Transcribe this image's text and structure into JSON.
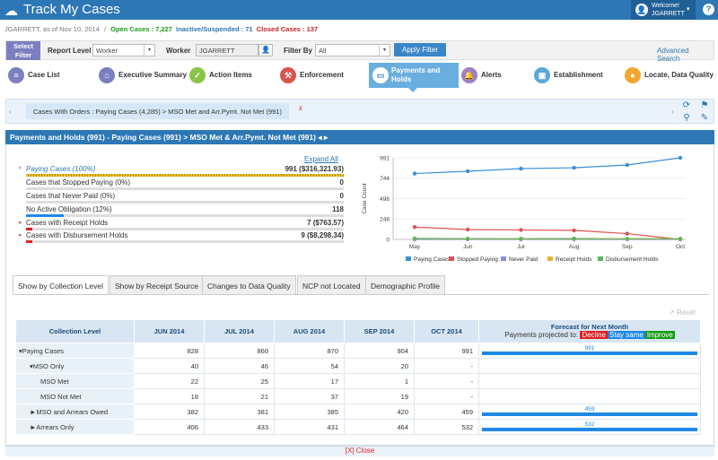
{
  "app": {
    "title": "Track My Cases"
  },
  "user": {
    "welcome": "Welcome!",
    "name": "JGARRETT",
    "help": "?"
  },
  "status": {
    "as_of": "JGARRETT, as of Nov 10, 2014",
    "sep": "/",
    "open": "Open Cases : 7,227",
    "inactive": "Inactive/Suspended : 71",
    "closed": "Closed Cases : 137"
  },
  "filter": {
    "select_label": "Select Filter",
    "report_level_label": "Report Level",
    "report_level_value": "Worker",
    "worker_label": "Worker",
    "worker_value": "JGARRETT",
    "filter_by_label": "Filter By",
    "filter_by_value": "All",
    "apply": "Apply Filter",
    "advanced": "Advanced Search"
  },
  "nav": [
    {
      "label": "Case List",
      "color": "#7b7fbf",
      "icon": "list-icon"
    },
    {
      "label": "Executive Summary",
      "color": "#7b7fbf",
      "icon": "home-icon"
    },
    {
      "label": "Action Items",
      "color": "#8bc34a",
      "icon": "check-icon"
    },
    {
      "label": "Enforcement",
      "color": "#d9534f",
      "icon": "gavel-icon"
    },
    {
      "label": "Payments and Holds",
      "color": "#ffffff",
      "icon": "money-icon",
      "active": true
    },
    {
      "label": "Alerts",
      "color": "#9c7fc7",
      "icon": "bell-icon"
    },
    {
      "label": "Establishment",
      "color": "#5aa7d8",
      "icon": "briefcase-icon"
    },
    {
      "label": "Locate, Data Quality",
      "color": "#f0a830",
      "icon": "map-pin-icon"
    }
  ],
  "breadcrumb": {
    "chip": "Cases With Orders : Paying Cases (4,285) > MSO Met and Arr.Pymt. Not Met (991)",
    "close": "x"
  },
  "panel": {
    "title": "Payments and Holds (991) - Paying Cases (991) > MSO Met & Arr.Pymt. Not Met (991)",
    "title_arrows": "◂ ▸"
  },
  "metrics": {
    "expand_all": "Expand All",
    "rows": [
      {
        "name": "Paying Cases (100%)",
        "value": "991 ($316,321.93)",
        "fraction": 1.0,
        "bar_color": "#f0c020",
        "italic": true
      },
      {
        "name": "Cases that Stopped Paying (0%)",
        "value": "0",
        "fraction": 0.0,
        "bar_color": "#1e88e5"
      },
      {
        "name": "Cases that Never Paid (0%)",
        "value": "0",
        "fraction": 0.0,
        "bar_color": "#1e88e5"
      },
      {
        "name": "No Active Obligation (12%)",
        "value": "118",
        "fraction": 0.12,
        "bar_color": "#1e88e5"
      },
      {
        "name": "Cases with Receipt Holds",
        "value": "7 ($763.57)",
        "fraction": 0.007,
        "bar_color": "#e02020"
      },
      {
        "name": "Cases with Disbursement Holds",
        "value": "9 ($8,298.34)",
        "fraction": 0.02,
        "bar_color": "#e02020"
      }
    ]
  },
  "chart_data": {
    "type": "line",
    "categories": [
      "May",
      "Jun",
      "Jul",
      "Aug",
      "Sep",
      "Oct"
    ],
    "ylabel": "Case Count",
    "ylim": [
      0,
      991
    ],
    "yticks": [
      0,
      248,
      496,
      744,
      991
    ],
    "legend_position": "bottom",
    "series": [
      {
        "name": "Paying Cases",
        "color": "#3a8fd8",
        "values": [
          800,
          828,
          860,
          870,
          904,
          991
        ]
      },
      {
        "name": "Stopped Paying",
        "color": "#e05050",
        "values": [
          150,
          120,
          115,
          110,
          70,
          0
        ]
      },
      {
        "name": "Never Paid",
        "color": "#8890d8",
        "values": [
          0,
          0,
          0,
          0,
          0,
          0
        ]
      },
      {
        "name": "Receipt Holds",
        "color": "#f0b030",
        "values": [
          10,
          8,
          7,
          8,
          7,
          7
        ]
      },
      {
        "name": "Disbursement Holds",
        "color": "#5cb85c",
        "values": [
          12,
          10,
          9,
          11,
          9,
          9
        ]
      }
    ]
  },
  "tabs": [
    "Show by Collection Level",
    "Show by Receipt Source",
    "Changes to Data Quality",
    "NCP not Located",
    "Demographic Profile"
  ],
  "reset": "Reset",
  "table": {
    "headers": [
      "Collection Level",
      "JUN 2014",
      "JUL 2014",
      "AUG 2014",
      "SEP 2014",
      "OCT 2014"
    ],
    "forecast_title": "Forecast for Next Month",
    "forecast_sub": "Payments projected to:",
    "decline": "Decline",
    "same": "Stay same",
    "improve": "Improve",
    "rows": [
      {
        "level": "▾Paying Cases",
        "indent": 0,
        "values": [
          "828",
          "860",
          "870",
          "904",
          "991"
        ],
        "forecast": "991",
        "forecast_fraction": 1.0
      },
      {
        "level": "▾MSO Only",
        "indent": 1,
        "values": [
          "40",
          "46",
          "54",
          "20",
          "-"
        ],
        "forecast": "",
        "forecast_fraction": 0
      },
      {
        "level": "MSO Met",
        "indent": 2,
        "values": [
          "22",
          "25",
          "17",
          "1",
          "-"
        ],
        "forecast": "",
        "forecast_fraction": 0
      },
      {
        "level": "MSO Not Met",
        "indent": 2,
        "values": [
          "18",
          "21",
          "37",
          "19",
          "-"
        ],
        "forecast": "",
        "forecast_fraction": 0
      },
      {
        "level": "►MSO and Arrears Owed",
        "indent": 1,
        "values": [
          "382",
          "381",
          "385",
          "420",
          "459"
        ],
        "forecast": "459",
        "forecast_fraction": 1.0
      },
      {
        "level": "►Arrears Only",
        "indent": 1,
        "values": [
          "406",
          "433",
          "431",
          "464",
          "532"
        ],
        "forecast": "532",
        "forecast_fraction": 1.0
      }
    ]
  },
  "close": "[X] Close"
}
